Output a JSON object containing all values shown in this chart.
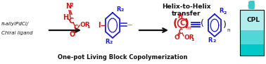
{
  "background_color": "#ffffff",
  "left_text_line1": "π-allylPdCl/",
  "left_text_line2": "Chiral ligand",
  "bottom_text": "One-pot Living Block Copolymerization",
  "helix_text1": "Helix-to-Helix",
  "helix_text2": "transfer",
  "cpl_text": "CPL",
  "blue_color": "#1a1acc",
  "red_color": "#cc1a1a",
  "black_color": "#111111",
  "cyan_light": "#7fdfdf",
  "cyan_dark": "#00b8b8",
  "cyan_mid": "#40cccc",
  "helix_color": "#44cccc",
  "figure_width": 3.78,
  "figure_height": 0.91,
  "dpi": 100
}
